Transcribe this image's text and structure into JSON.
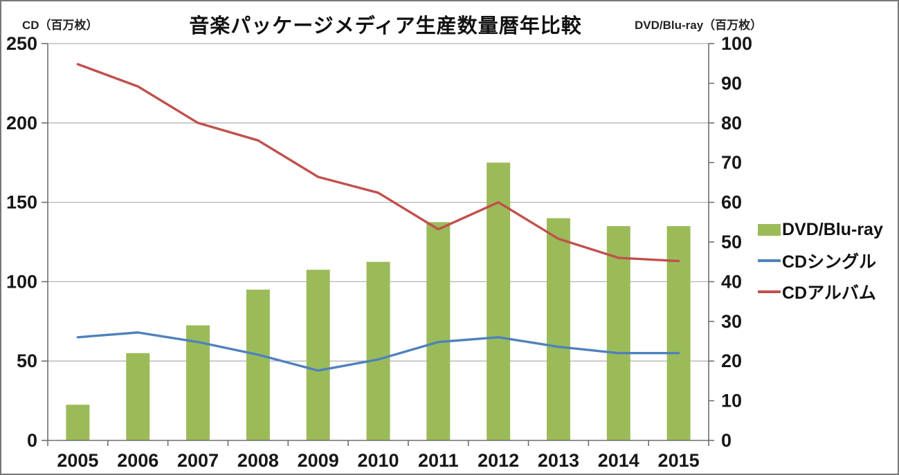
{
  "chart_data": {
    "type": "combo-bar-line",
    "title": "音楽パッケージメディア生産数量暦年比較",
    "categories": [
      "2005",
      "2006",
      "2007",
      "2008",
      "2009",
      "2010",
      "2011",
      "2012",
      "2013",
      "2014",
      "2015"
    ],
    "series": [
      {
        "name": "DVD/Blu-ray",
        "type": "bar",
        "axis": "right",
        "color": "#9BBB59",
        "values": [
          9,
          22,
          29,
          38,
          43,
          45,
          55,
          70,
          56,
          54,
          54
        ]
      },
      {
        "name": "CDシングル",
        "type": "line",
        "axis": "left",
        "color": "#4F81BD",
        "values": [
          65,
          68,
          62,
          54,
          44,
          51,
          62,
          65,
          59,
          55,
          55
        ]
      },
      {
        "name": "CDアルバム",
        "type": "line",
        "axis": "left",
        "color": "#C0504D",
        "values": [
          237,
          223,
          200,
          189,
          166,
          156,
          133,
          150,
          127,
          115,
          113
        ]
      }
    ],
    "left_axis": {
      "label": "CD（百万枚）",
      "min": 0,
      "max": 250,
      "step": 50
    },
    "right_axis": {
      "label": "DVD/Blu-ray（百万枚）",
      "min": 0,
      "max": 100,
      "step": 10
    },
    "legend_position": "right",
    "grid": true,
    "colors": {
      "grid": "#b5b5b5",
      "axis": "#6e6e6e",
      "tick_text": "#171717"
    }
  }
}
